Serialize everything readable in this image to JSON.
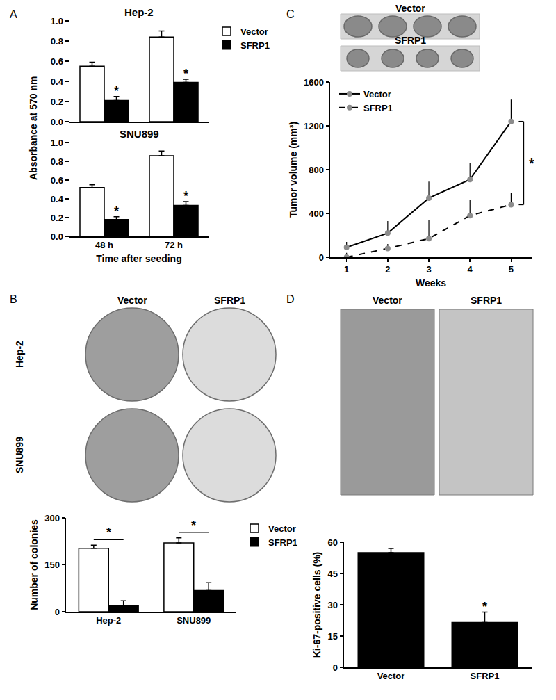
{
  "chart_data": [
    {
      "panel": "A",
      "type": "bar",
      "title": "Hep-2",
      "y_label": "Absorbance at 570 nm",
      "categories": [
        "48 h",
        "72 h"
      ],
      "series": [
        {
          "name": "Vector",
          "color": "#ffffff",
          "values": [
            0.55,
            0.84
          ],
          "errors": [
            0.04,
            0.06
          ]
        },
        {
          "name": "SFRP1",
          "color": "#000000",
          "values": [
            0.21,
            0.39
          ],
          "errors": [
            0.04,
            0.03
          ]
        }
      ],
      "ylim": [
        0,
        1.0
      ],
      "yticks": [
        {
          "value": 0,
          "label": "0.0"
        },
        {
          "value": 0.2,
          "label": "0.2"
        },
        {
          "value": 0.4,
          "label": "0.4"
        },
        {
          "value": 0.6,
          "label": "0.6"
        },
        {
          "value": 0.8,
          "label": "0.8"
        },
        {
          "value": 1.0,
          "label": "1.0"
        }
      ],
      "tick_labels": "y",
      "legend": "right",
      "annotations": [
        {
          "text": "*",
          "category": "48 h",
          "series": "SFRP1"
        },
        {
          "text": "*",
          "category": "72 h",
          "series": "SFRP1"
        }
      ]
    },
    {
      "type": "bar",
      "title": "SNU899",
      "x_label": "Time after seeding",
      "categories": [
        "48 h",
        "72 h"
      ],
      "series": [
        {
          "name": "Vector",
          "color": "#ffffff",
          "values": [
            0.52,
            0.86
          ],
          "errors": [
            0.03,
            0.05
          ]
        },
        {
          "name": "SFRP1",
          "color": "#000000",
          "values": [
            0.18,
            0.33
          ],
          "errors": [
            0.03,
            0.04
          ]
        }
      ],
      "ylim": [
        0,
        1.0
      ],
      "yticks": [
        {
          "value": 0,
          "label": "0.0"
        },
        {
          "value": 0.2,
          "label": "0.2"
        },
        {
          "value": 0.4,
          "label": "0.4"
        },
        {
          "value": 0.6,
          "label": "0.6"
        },
        {
          "value": 0.8,
          "label": "0.8"
        },
        {
          "value": 1.0,
          "label": "1.0"
        }
      ],
      "annotations": [
        {
          "text": "*",
          "category": "48 h",
          "series": "SFRP1"
        },
        {
          "text": "*",
          "category": "72 h",
          "series": "SFRP1"
        }
      ]
    },
    {
      "panel": "B",
      "type": "bar",
      "y_label": "Number of colonies",
      "categories": [
        "Hep-2",
        "SNU899"
      ],
      "series": [
        {
          "name": "Vector",
          "color": "#ffffff",
          "values": [
            203,
            220
          ],
          "errors": [
            10,
            16
          ]
        },
        {
          "name": "SFRP1",
          "color": "#000000",
          "values": [
            20,
            68
          ],
          "errors": [
            15,
            25
          ]
        }
      ],
      "ylim": [
        0,
        300
      ],
      "yticks": [
        0,
        150,
        300
      ],
      "legend": "right",
      "annotations": [
        {
          "text": "*",
          "category": "Hep-2",
          "bracket": true
        },
        {
          "text": "*",
          "category": "SNU899",
          "bracket": true
        }
      ]
    },
    {
      "panel": "C",
      "type": "line",
      "x_label": "Weeks",
      "y_label": "Tumor volume (mm³)",
      "x": [
        1,
        2,
        3,
        4,
        5
      ],
      "series": [
        {
          "name": "Vector",
          "color": "#000000",
          "line_style": "solid",
          "values": [
            90,
            220,
            540,
            710,
            1240
          ],
          "errors": [
            50,
            110,
            150,
            150,
            200
          ]
        },
        {
          "name": "SFRP1",
          "color": "#000000",
          "line_style": "dash",
          "values": [
            0,
            80,
            170,
            380,
            480
          ],
          "errors": [
            40,
            40,
            170,
            140,
            110
          ]
        }
      ],
      "xlim": [
        0.6,
        5.5
      ],
      "xticks": [
        1,
        2,
        3,
        4,
        5
      ],
      "ylim": [
        0,
        1600
      ],
      "yticks": [
        0,
        400,
        800,
        1200,
        1600
      ],
      "legend": "top left",
      "marker": "circle",
      "annotations": [
        {
          "text": "*",
          "x": 5,
          "bracket": true
        }
      ]
    },
    {
      "panel": "D",
      "type": "bar",
      "y_label": "Ki-67-positive cells (%)",
      "categories": [
        "Vector",
        "SFRP1"
      ],
      "values": [
        55,
        21.5
      ],
      "errors": [
        2,
        5
      ],
      "color": "#000000",
      "ylim": [
        0,
        60
      ],
      "yticks": [
        0,
        15,
        30,
        45,
        60
      ],
      "annotations": [
        {
          "text": "*",
          "category": "SFRP1"
        }
      ]
    }
  ],
  "images": [
    {
      "panel": "B",
      "columns": [
        "Vector",
        "SFRP1"
      ],
      "rows": [
        "Hep-2",
        "SNU899"
      ]
    },
    {
      "panel": "C",
      "rows": [
        "Vector",
        "SFRP1"
      ]
    },
    {
      "panel": "D",
      "columns": [
        "Vector",
        "SFRP1"
      ]
    }
  ]
}
